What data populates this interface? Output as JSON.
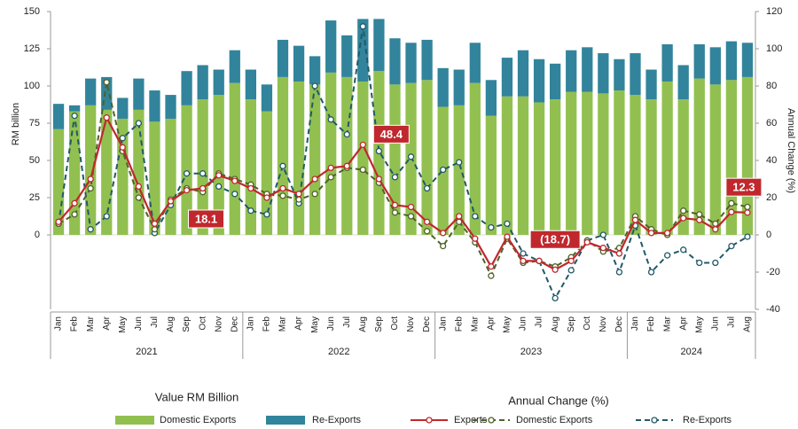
{
  "chart_data": {
    "type": "bar_line",
    "y_label": "RM billion",
    "y2_label": "Annual Change (%)",
    "legend_value_heading": "Value RM Billion",
    "legend_change_heading": "Annual Change (%)",
    "categories": [
      "Jan",
      "Feb",
      "Mar",
      "Apr",
      "May",
      "Jun",
      "Jul",
      "Aug",
      "Sep",
      "Oct",
      "Nov",
      "Dec",
      "Jan",
      "Feb",
      "Mar",
      "Apr",
      "May",
      "Jun",
      "Jul",
      "Aug",
      "Sep",
      "Oct",
      "Nov",
      "Dec",
      "Jan",
      "Feb",
      "Mar",
      "Apr",
      "May",
      "Jun",
      "Jul",
      "Aug",
      "Sep",
      "Oct",
      "Nov",
      "Dec",
      "Jan",
      "Feb",
      "Mar",
      "Apr",
      "May",
      "Jun",
      "Jul",
      "Aug"
    ],
    "years": [
      "2021",
      "2022",
      "2023",
      "2024"
    ],
    "ylim": [
      -50,
      150
    ],
    "yticks": [
      0,
      25,
      50,
      75,
      100,
      125,
      150
    ],
    "y2lim": [
      -40,
      120
    ],
    "y2ticks": [
      -40,
      -20,
      0,
      20,
      40,
      60,
      80,
      100,
      120
    ],
    "series": [
      {
        "name": "Domestic Exports",
        "kind": "bar",
        "color": "#92c050",
        "values": [
          71,
          83,
          87,
          84,
          78,
          84,
          76,
          78,
          87,
          91,
          94,
          102,
          91,
          83,
          106,
          103,
          101,
          109,
          106,
          103,
          110,
          101,
          102,
          104,
          86,
          87,
          102,
          80,
          93,
          93,
          89,
          91,
          96,
          96,
          95,
          97,
          94,
          91,
          103,
          91,
          105,
          101,
          104,
          106
        ]
      },
      {
        "name": "Re-Exports",
        "kind": "bar",
        "color": "#31849b",
        "values": [
          17,
          4,
          18,
          22,
          14,
          21,
          21,
          16,
          23,
          23,
          17,
          22,
          20,
          18,
          25,
          24,
          19,
          35,
          28,
          42,
          35,
          31,
          27,
          27,
          26,
          24,
          27,
          24,
          26,
          31,
          29,
          24,
          28,
          30,
          27,
          21,
          28,
          20,
          25,
          23,
          23,
          25,
          26,
          23
        ]
      },
      {
        "name": "Exports",
        "kind": "line",
        "axis": "y2",
        "color": "#c0282d",
        "dash": false,
        "values": [
          7,
          17,
          30,
          63,
          47,
          26,
          6,
          18.1,
          24,
          25,
          32,
          29,
          25,
          20,
          25,
          22,
          30,
          36,
          37,
          48.4,
          30,
          16,
          15,
          7,
          1,
          10,
          -2,
          -17,
          -1,
          -14,
          -14,
          -18.7,
          -14,
          -4,
          -7,
          -10,
          8,
          1,
          1,
          9,
          8,
          3,
          12.3,
          12
        ],
        "value_labels": [
          null,
          null,
          null,
          null,
          null,
          null,
          null,
          "18.1",
          null,
          null,
          null,
          null,
          null,
          null,
          null,
          null,
          null,
          null,
          null,
          "48.4",
          null,
          null,
          null,
          null,
          null,
          null,
          null,
          null,
          null,
          null,
          null,
          "(18.7)",
          null,
          null,
          null,
          null,
          null,
          null,
          null,
          null,
          null,
          null,
          "12.3",
          null
        ]
      },
      {
        "name": "Domestic Exports",
        "kind": "line",
        "axis": "y2",
        "color": "#4f6228",
        "dash": true,
        "values": [
          6,
          11,
          25,
          82,
          45,
          20,
          3,
          19,
          25,
          23,
          33,
          30,
          27,
          22,
          21,
          19,
          22,
          31,
          36,
          35,
          28,
          12,
          10,
          2,
          -6,
          7,
          -4,
          -22,
          -2,
          -15,
          -14,
          -17,
          -12,
          -3,
          -9,
          -7,
          10,
          3,
          0,
          13,
          11,
          6,
          17,
          15
        ]
      },
      {
        "name": "Re-Exports",
        "kind": "line",
        "axis": "y2",
        "color": "#215968",
        "dash": true,
        "values": [
          6,
          64,
          3,
          10,
          52,
          60,
          1,
          16,
          33,
          33,
          26,
          22,
          13,
          11,
          37,
          17,
          80,
          62,
          54,
          112,
          45,
          31,
          42,
          25,
          35,
          39,
          10,
          4,
          6,
          -10,
          -14,
          -34,
          -19,
          -3,
          0,
          -20,
          5,
          -20,
          -11,
          -8,
          -15,
          -15,
          -6,
          -1
        ]
      }
    ]
  }
}
